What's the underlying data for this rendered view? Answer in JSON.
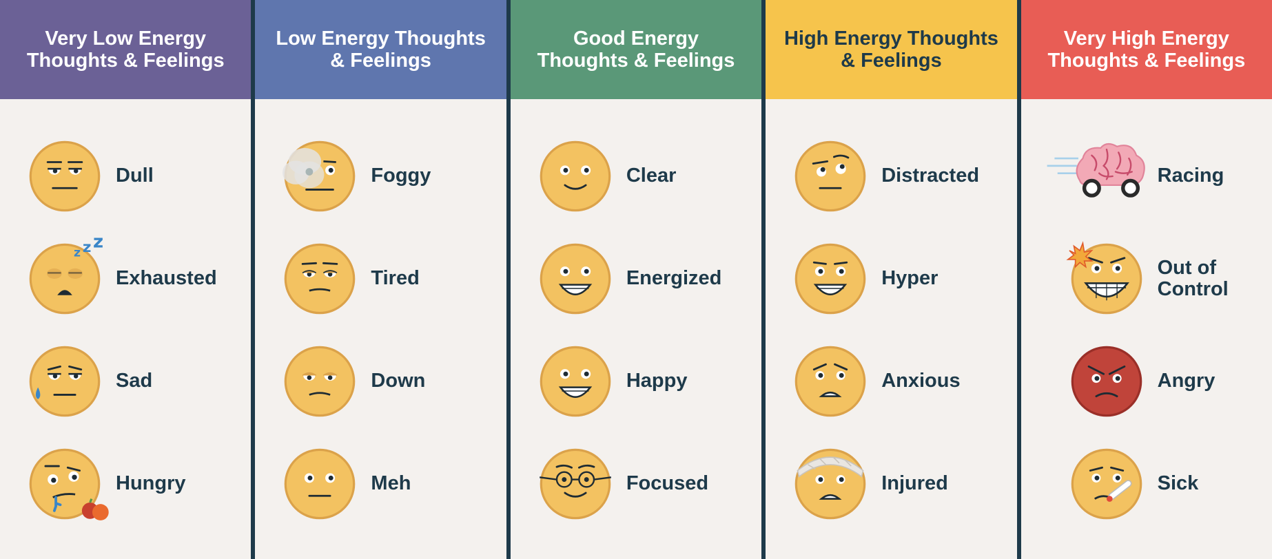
{
  "columns": [
    {
      "id": "very-low",
      "title": "Very Low Energy\nThoughts & Feelings",
      "header_color": "#6b6196",
      "title_color": "#ffffff",
      "items": [
        {
          "label": "Dull",
          "icon": "dull-face-icon"
        },
        {
          "label": "Exhausted",
          "icon": "exhausted-sleeping-face-icon"
        },
        {
          "label": "Sad",
          "icon": "sad-tear-face-icon"
        },
        {
          "label": "Hungry",
          "icon": "hungry-drooling-face-icon"
        }
      ]
    },
    {
      "id": "low",
      "title": "Low Energy Thoughts\n& Feelings",
      "header_color": "#5f76ae",
      "title_color": "#ffffff",
      "items": [
        {
          "label": "Foggy",
          "icon": "foggy-face-icon"
        },
        {
          "label": "Tired",
          "icon": "tired-face-icon"
        },
        {
          "label": "Down",
          "icon": "down-face-icon"
        },
        {
          "label": "Meh",
          "icon": "meh-face-icon"
        }
      ]
    },
    {
      "id": "good",
      "title": "Good Energy\nThoughts & Feelings",
      "header_color": "#5a9878",
      "title_color": "#ffffff",
      "items": [
        {
          "label": "Clear",
          "icon": "clear-smile-face-icon"
        },
        {
          "label": "Energized",
          "icon": "energized-grin-face-icon"
        },
        {
          "label": "Happy",
          "icon": "happy-smile-face-icon"
        },
        {
          "label": "Focused",
          "icon": "focused-glasses-face-icon"
        }
      ]
    },
    {
      "id": "high",
      "title": "High Energy Thoughts\n& Feelings",
      "header_color": "#f6c44c",
      "title_color": "#1e3a4a",
      "items": [
        {
          "label": "Distracted",
          "icon": "distracted-face-icon"
        },
        {
          "label": "Hyper",
          "icon": "hyper-grin-face-icon"
        },
        {
          "label": "Anxious",
          "icon": "anxious-face-icon"
        },
        {
          "label": "Injured",
          "icon": "injured-bandage-face-icon"
        }
      ]
    },
    {
      "id": "very-high",
      "title": "Very High Energy\nThoughts & Feelings",
      "header_color": "#e85d55",
      "title_color": "#ffffff",
      "items": [
        {
          "label": "Racing",
          "icon": "racing-brain-icon"
        },
        {
          "label": "Out of\nControl",
          "icon": "out-of-control-face-icon"
        },
        {
          "label": "Angry",
          "icon": "angry-face-icon"
        },
        {
          "label": "Sick",
          "icon": "sick-thermometer-face-icon"
        }
      ]
    }
  ]
}
